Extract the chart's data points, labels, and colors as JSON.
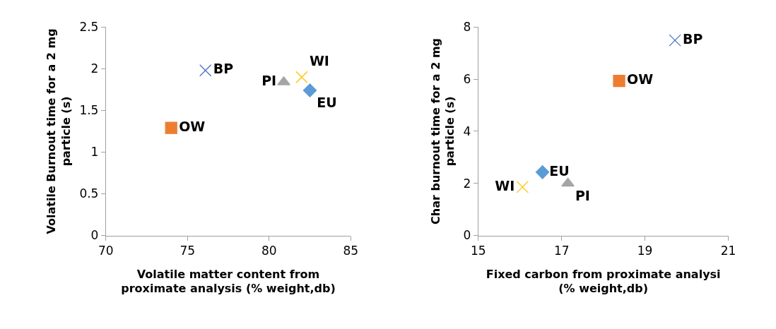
{
  "chart_data": [
    {
      "type": "scatter",
      "xlabel": "Volatile matter content from\nproximate analysis (% weight,db)",
      "ylabel": "Volatile Burnout time for a 2 mg\nparticle (s)",
      "xlim": [
        70,
        85
      ],
      "xticks": [
        70,
        75,
        80,
        85
      ],
      "ylim": [
        0,
        2.5
      ],
      "yticks": [
        0,
        0.5,
        1,
        1.5,
        2,
        2.5
      ],
      "series": [
        {
          "name": "EU",
          "color": "#5b9bd5",
          "marker": "diamond",
          "x": [
            82.5
          ],
          "values": [
            1.74
          ]
        },
        {
          "name": "OW",
          "color": "#ed7d31",
          "marker": "square",
          "x": [
            74.0
          ],
          "values": [
            1.29
          ]
        },
        {
          "name": "PI",
          "color": "#a5a5a5",
          "marker": "triangle",
          "x": [
            80.9
          ],
          "values": [
            1.84
          ]
        },
        {
          "name": "WI",
          "color": "#ffc000",
          "marker": "cross",
          "x": [
            82.0
          ],
          "values": [
            1.9
          ]
        },
        {
          "name": "BP",
          "color": "#4472c4",
          "marker": "cross",
          "x": [
            76.1
          ],
          "values": [
            1.98
          ]
        }
      ]
    },
    {
      "type": "scatter",
      "xlabel": "Fixed carbon from proximate analysi\n(% weight,db)",
      "ylabel": "Char burnout time for a 2 mg\nparticle (s)",
      "xlim": [
        15,
        21
      ],
      "xticks": [
        15,
        17,
        19,
        21
      ],
      "ylim": [
        0,
        8
      ],
      "yticks": [
        0,
        2,
        4,
        6,
        8
      ],
      "series": [
        {
          "name": "EU",
          "color": "#5b9bd5",
          "marker": "diamond",
          "x": [
            16.54
          ],
          "values": [
            2.43
          ]
        },
        {
          "name": "OW",
          "color": "#ed7d31",
          "marker": "square",
          "x": [
            18.38
          ],
          "values": [
            5.93
          ]
        },
        {
          "name": "PI",
          "color": "#a5a5a5",
          "marker": "triangle",
          "x": [
            17.15
          ],
          "values": [
            2.0
          ]
        },
        {
          "name": "WI",
          "color": "#ffc000",
          "marker": "cross",
          "x": [
            16.06
          ],
          "values": [
            1.86
          ]
        },
        {
          "name": "BP",
          "color": "#4472c4",
          "marker": "cross",
          "x": [
            19.72
          ],
          "values": [
            7.49
          ]
        }
      ]
    }
  ]
}
